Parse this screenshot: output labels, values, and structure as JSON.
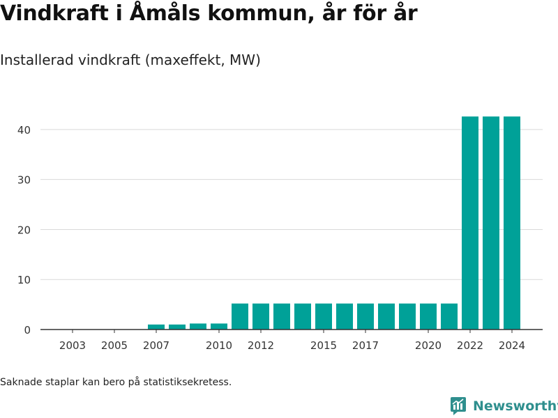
{
  "header": {
    "title": "Vindkraft i Åmåls kommun, år för år",
    "subtitle": "Installerad vindkraft (maxeffekt, MW)"
  },
  "footer": {
    "note": "Saknade staplar kan bero på statistiksekretess.",
    "brand": "Newsworthy"
  },
  "colors": {
    "bar": "#00a198",
    "brand": "#2f8f8e",
    "grid": "#d9d9d9",
    "axis": "#333333"
  },
  "chart_data": {
    "type": "bar",
    "categories": [
      2003,
      2004,
      2005,
      2006,
      2007,
      2008,
      2009,
      2010,
      2011,
      2012,
      2013,
      2014,
      2015,
      2016,
      2017,
      2018,
      2019,
      2020,
      2021,
      2022,
      2023,
      2024
    ],
    "values": [
      0,
      0,
      0,
      0,
      1.0,
      1.0,
      1.2,
      1.2,
      5.2,
      5.2,
      5.2,
      5.2,
      5.2,
      5.2,
      5.2,
      5.2,
      5.2,
      5.2,
      5.2,
      42.6,
      42.6,
      42.6
    ],
    "x_tick_labels": [
      "2003",
      "2005",
      "2007",
      "2010",
      "2012",
      "2015",
      "2017",
      "2020",
      "2022",
      "2024"
    ],
    "y_ticks": [
      0,
      10,
      20,
      30,
      40
    ],
    "ylim": [
      0,
      45
    ],
    "grid": true,
    "legend": "none"
  }
}
